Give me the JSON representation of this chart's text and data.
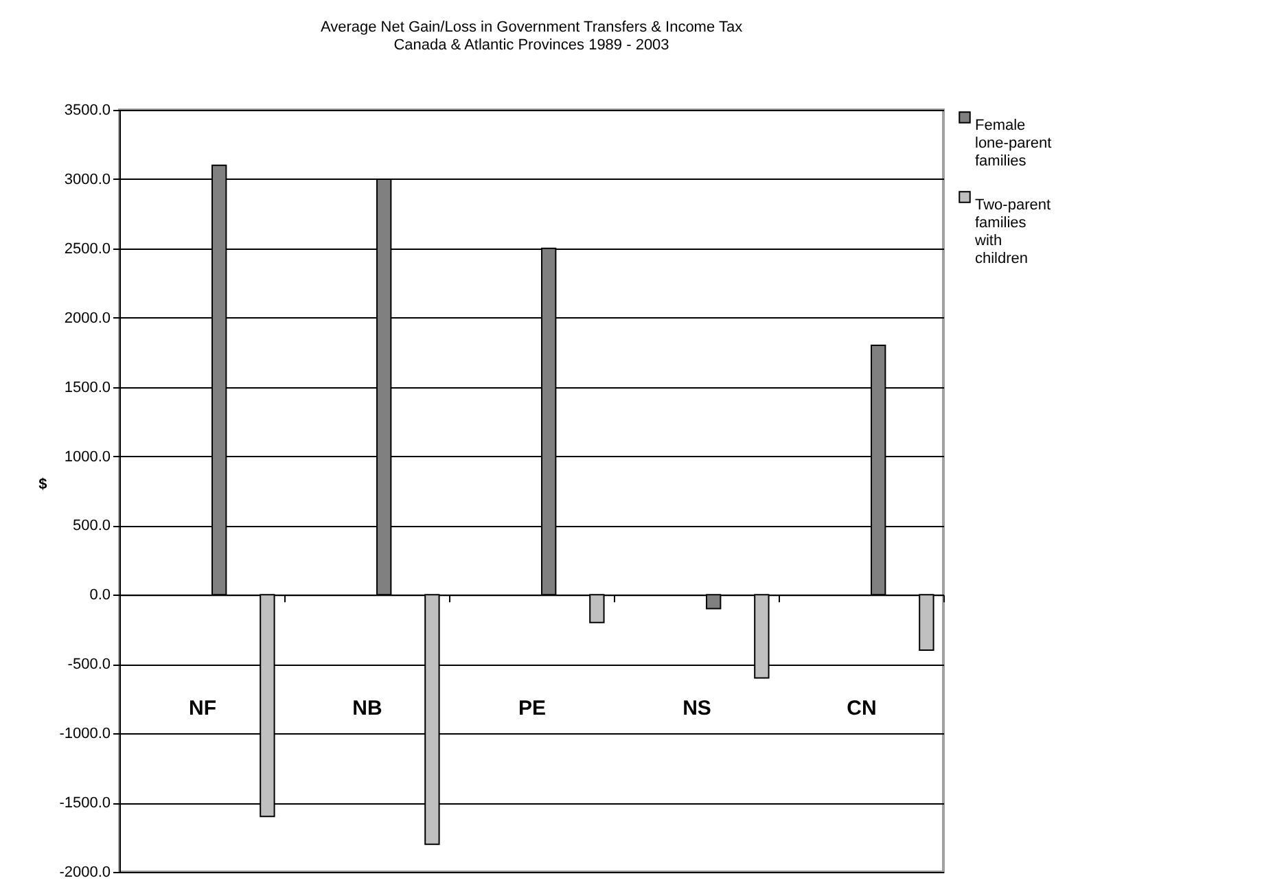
{
  "chart_data": {
    "type": "bar",
    "title": "Average Net Gain/Loss in Government Transfers & Income Tax",
    "subtitle": "Canada & Atlantic Provinces 1989 - 2003",
    "ylabel": "$",
    "categories": [
      "NF",
      "NB",
      "PE",
      "NS",
      "CN"
    ],
    "series": [
      {
        "name": "Female lone-parent families",
        "color": "#808080",
        "values": [
          3100,
          3000,
          2500,
          -100,
          1800
        ]
      },
      {
        "name": "Two-parent families with children",
        "color": "#c0c0c0",
        "values": [
          -1600,
          -1800,
          -200,
          -600,
          -400
        ]
      }
    ],
    "ylim": [
      -2000,
      3500
    ],
    "yticks": [
      {
        "value": -2000,
        "label": "-2000.0"
      },
      {
        "value": -1500,
        "label": "-1500.0"
      },
      {
        "value": -1000,
        "label": "-1000.0"
      },
      {
        "value": -500,
        "label": "-500.0"
      },
      {
        "value": 0,
        "label": "0.0"
      },
      {
        "value": 500,
        "label": "500.0"
      },
      {
        "value": 1000,
        "label": "1000.0"
      },
      {
        "value": 1500,
        "label": "1500.0"
      },
      {
        "value": 2000,
        "label": "2000.0"
      },
      {
        "value": 2500,
        "label": "2500.0"
      },
      {
        "value": 3000,
        "label": "3000.0"
      },
      {
        "value": 3500,
        "label": "3500.0"
      }
    ],
    "grid": "y",
    "legend": "right"
  }
}
